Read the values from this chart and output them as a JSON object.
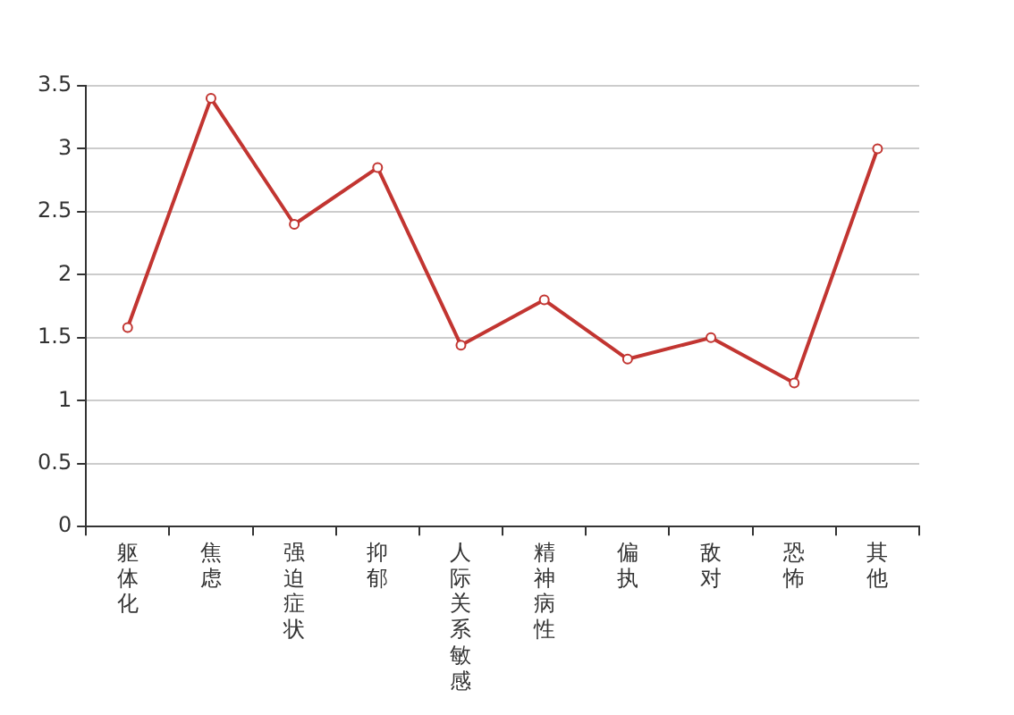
{
  "chart_data": {
    "type": "line",
    "categories": [
      "躯体化",
      "焦虑",
      "强迫症状",
      "抑郁",
      "人际关系敏感",
      "精神病性",
      "偏执",
      "敌对",
      "恐怖",
      "其他"
    ],
    "series": [
      {
        "color": "#c23531",
        "values": [
          1.58,
          3.4,
          2.4,
          2.85,
          1.44,
          1.8,
          1.33,
          1.5,
          1.14,
          3.0
        ]
      }
    ],
    "ylim": [
      0,
      3.5
    ],
    "yticks": [
      0,
      0.5,
      1,
      1.5,
      2,
      2.5,
      3,
      3.5
    ],
    "grid": "y",
    "legend": false,
    "marker": "circle",
    "line_style": "solid"
  }
}
